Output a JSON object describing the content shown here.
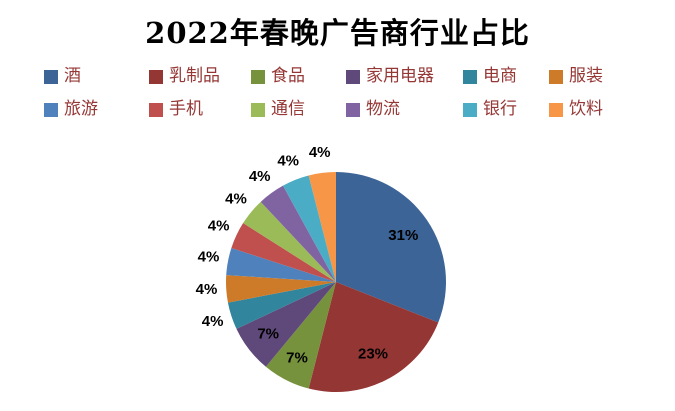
{
  "title": "2022年春晚广告商行业占比",
  "legend_text_color": "#953735",
  "chart_data": {
    "type": "pie",
    "title": "2022年春晚广告商行业占比",
    "legend_position": "top",
    "legend_rows": 2,
    "start_angle_deg": 0,
    "direction": "clockwise",
    "slices": [
      {
        "label": "酒",
        "value": 31,
        "percent_label": "31%",
        "color": "#3C6496"
      },
      {
        "label": "乳制品",
        "value": 23,
        "percent_label": "23%",
        "color": "#943634"
      },
      {
        "label": "食品",
        "value": 7,
        "percent_label": "7%",
        "color": "#76923C"
      },
      {
        "label": "家用电器",
        "value": 7,
        "percent_label": "7%",
        "color": "#5F497A"
      },
      {
        "label": "电商",
        "value": 4,
        "percent_label": "4%",
        "color": "#31859C"
      },
      {
        "label": "服装",
        "value": 4,
        "percent_label": "4%",
        "color": "#CE7B29"
      },
      {
        "label": "旅游",
        "value": 4,
        "percent_label": "4%",
        "color": "#4F81BD"
      },
      {
        "label": "手机",
        "value": 4,
        "percent_label": "4%",
        "color": "#C0504D"
      },
      {
        "label": "通信",
        "value": 4,
        "percent_label": "4%",
        "color": "#9BBB59"
      },
      {
        "label": "物流",
        "value": 4,
        "percent_label": "4%",
        "color": "#8064A2"
      },
      {
        "label": "银行",
        "value": 4,
        "percent_label": "4%",
        "color": "#4BACC6"
      },
      {
        "label": "饮料",
        "value": 4,
        "percent_label": "4%",
        "color": "#F79646"
      }
    ]
  }
}
